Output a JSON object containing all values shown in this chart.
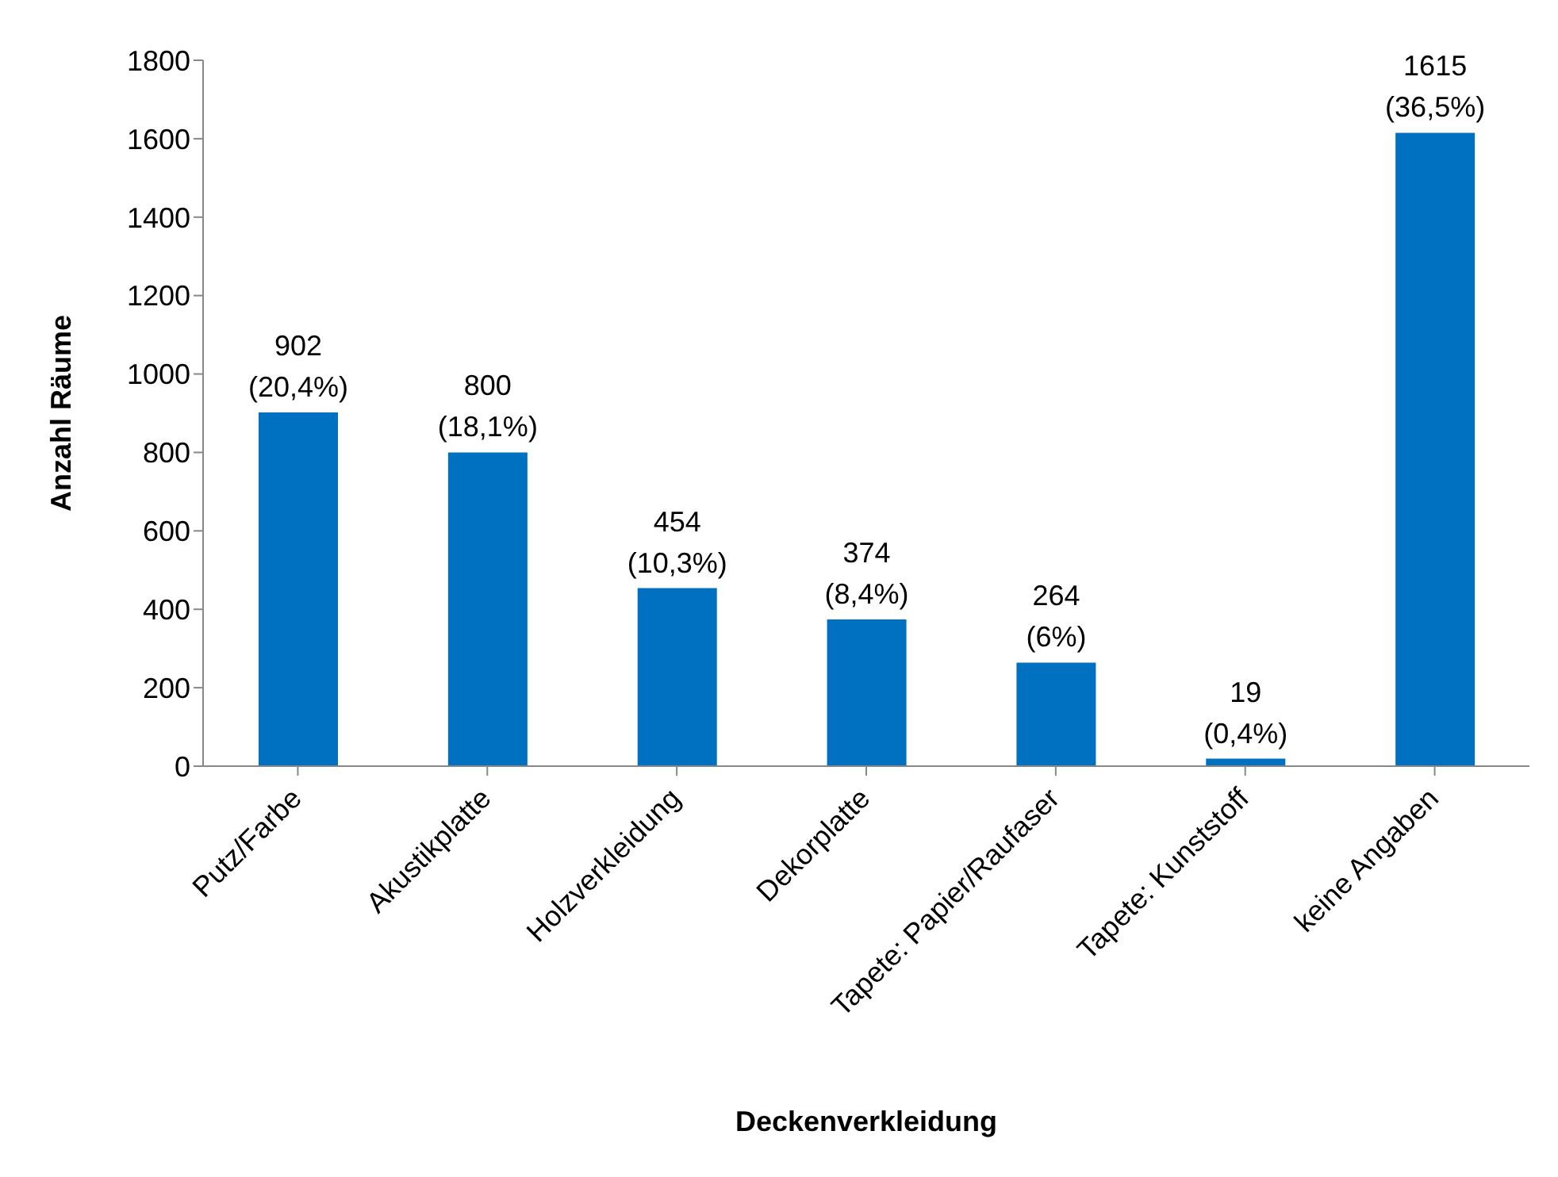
{
  "chart_data": {
    "type": "bar",
    "xlabel": "Deckenverkleidung",
    "ylabel": "Anzahl Räume",
    "categories": [
      "Putz/Farbe",
      "Akustikplatte",
      "Holzverkleidung",
      "Dekorplatte",
      "Tapete: Papier/Raufaser",
      "Tapete: Kunststoff",
      "keine Angaben"
    ],
    "values": [
      902,
      800,
      454,
      374,
      264,
      19,
      1615
    ],
    "value_labels": [
      "902 (20,4%)",
      "800 (18,1%)",
      "454 (10,3%)",
      "374 (8,4%)",
      "264 (6%)",
      "19 (0,4%)",
      "1615 (36,5%)"
    ],
    "color": "#0070c0",
    "ylim": [
      0,
      1800
    ],
    "yticks": [
      0,
      200,
      400,
      600,
      800,
      1000,
      1200,
      1400,
      1600,
      1800
    ],
    "grid": false,
    "legend": false
  }
}
